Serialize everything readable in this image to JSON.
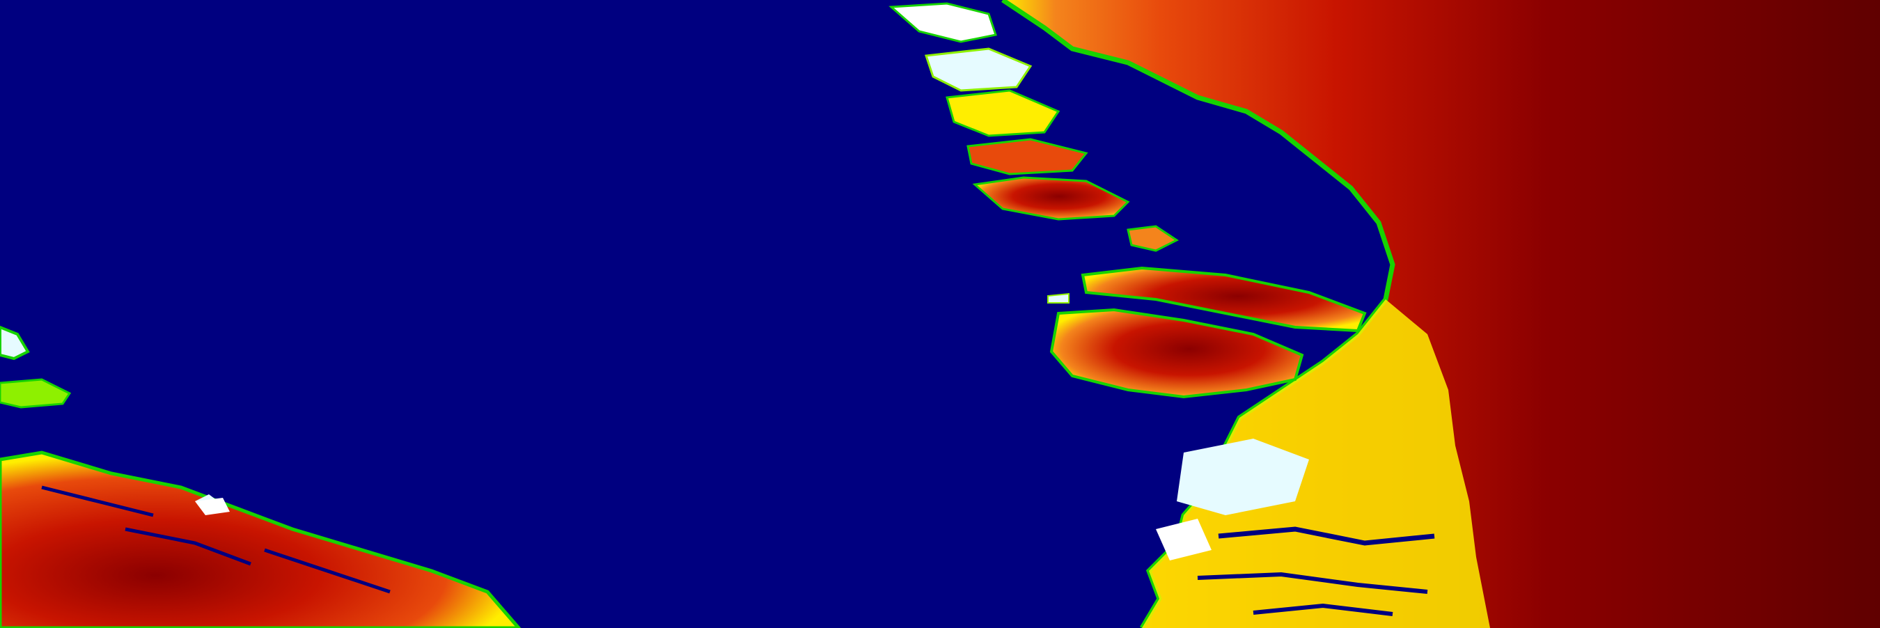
{
  "map": {
    "kind": "elevation-colormap",
    "colors": {
      "sea": "#000080",
      "deep_red": "#600000",
      "dark_red": "#8b0000",
      "red": "#c81400",
      "orange_red": "#e84a0c",
      "orange": "#f4841c",
      "yellow": "#ffee00",
      "lime": "#8ef000",
      "green": "#17d300",
      "pale_cyan": "#e6fbff",
      "white": "#ffffff"
    },
    "features": [
      "open-sea",
      "ice-sheet-gradient",
      "coastal-fjords",
      "large-islands",
      "southwest-landmass",
      "small-west-islands"
    ]
  }
}
